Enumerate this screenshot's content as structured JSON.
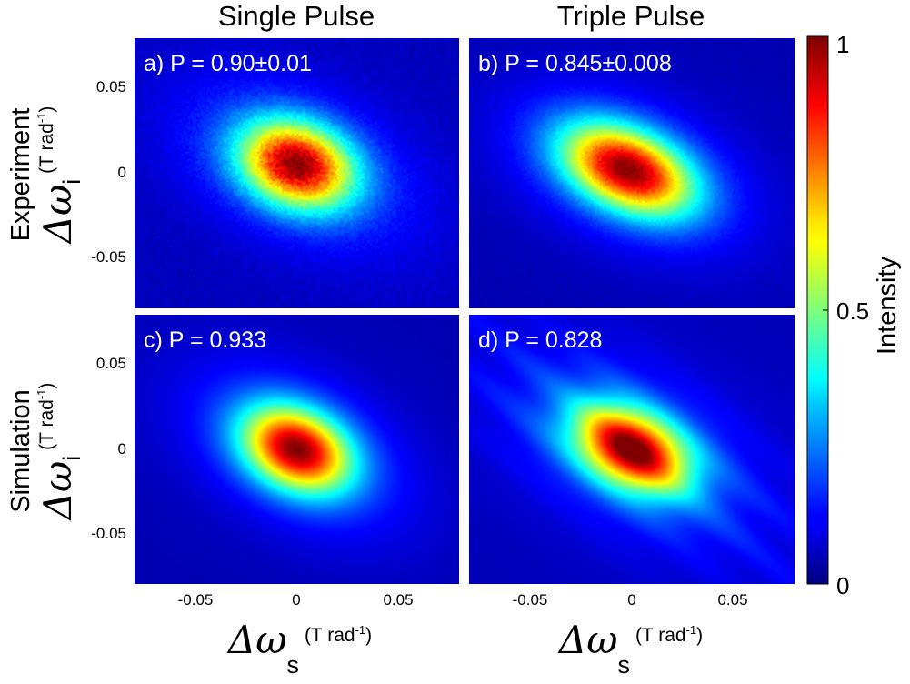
{
  "chart_data": {
    "type": "heatmap",
    "columns": [
      "Single Pulse",
      "Triple Pulse"
    ],
    "rows": [
      "Experiment",
      "Simulation"
    ],
    "xlabel": {
      "symbol": "Δω",
      "sub": "s",
      "unit": "(T rad",
      "unit_sup": "-1",
      "unit_close": ")"
    },
    "ylabel": {
      "symbol": "Δω",
      "sub": "i",
      "unit": "(T rad",
      "unit_sup": "-1",
      "unit_close": ")"
    },
    "xlim": [
      -0.08,
      0.08
    ],
    "ylim": [
      -0.08,
      0.08
    ],
    "x_ticks": [
      -0.05,
      0,
      0.05
    ],
    "y_ticks": [
      0.05,
      0,
      -0.05
    ],
    "x_tick_labels": [
      "-0.05",
      "0",
      "0.05"
    ],
    "y_tick_labels": [
      "0.05",
      "0",
      "-0.05"
    ],
    "colorbar": {
      "label": "Intensity",
      "range": [
        0,
        1
      ],
      "ticks": [
        0,
        0.5,
        1
      ],
      "tick_labels": [
        "0",
        "0.5",
        "1"
      ],
      "colormap": "jet"
    },
    "panels": [
      {
        "id": "a",
        "row": 0,
        "col": 0,
        "label": "a) P = 0.90±0.01",
        "peak": [
          0,
          0.005
        ],
        "sigma_major": 0.02,
        "sigma_minor": 0.016,
        "angle_deg": -35,
        "background": 0.06,
        "noise": 0.1
      },
      {
        "id": "b",
        "row": 0,
        "col": 1,
        "label": "b) P = 0.845±0.008",
        "peak": [
          -0.002,
          0.002
        ],
        "sigma_major": 0.024,
        "sigma_minor": 0.015,
        "angle_deg": -33,
        "background": 0.05,
        "noise": 0.05
      },
      {
        "id": "c",
        "row": 1,
        "col": 0,
        "label": "c) P = 0.933",
        "peak": [
          0,
          0
        ],
        "sigma_major": 0.02,
        "sigma_minor": 0.015,
        "angle_deg": -40,
        "background": 0.05,
        "noise": 0
      },
      {
        "id": "d",
        "row": 1,
        "col": 1,
        "label": "d) P = 0.828",
        "peak": [
          0,
          0
        ],
        "sigma_major": 0.021,
        "sigma_minor": 0.014,
        "angle_deg": -38,
        "background": 0.05,
        "noise": 0,
        "stripes": true
      }
    ]
  }
}
